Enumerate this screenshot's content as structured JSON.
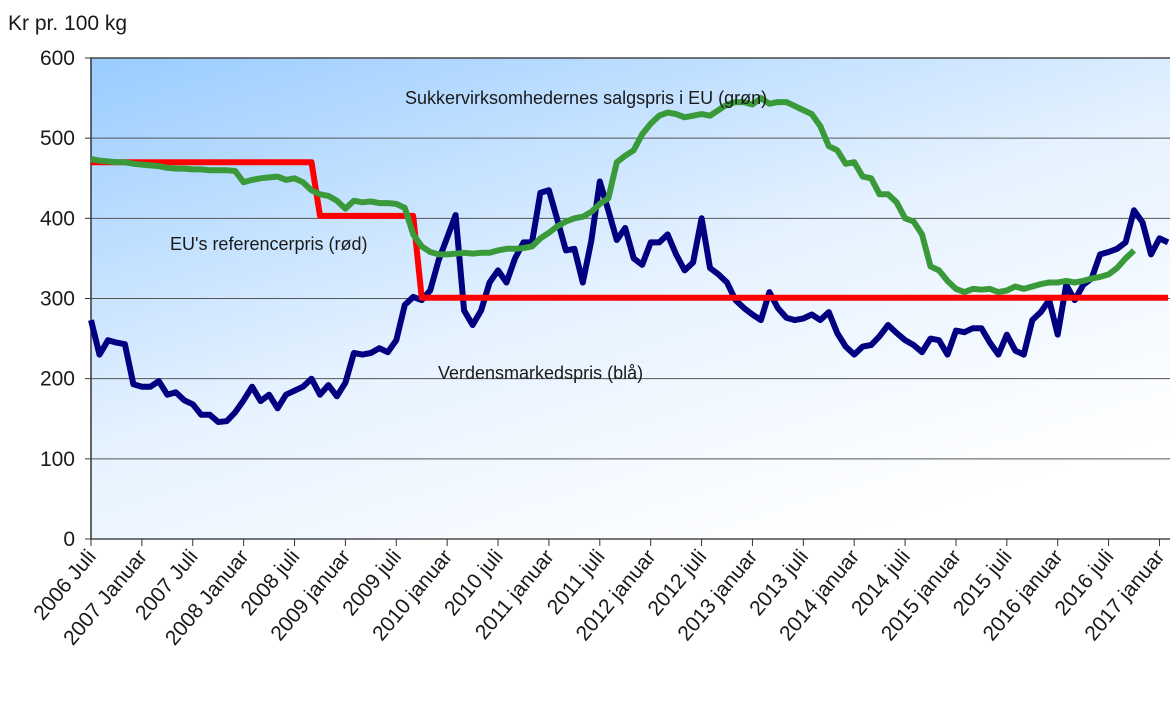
{
  "chart_data": {
    "type": "line",
    "y_label": "Kr pr. 100 kg",
    "annotations": [
      "Sukkervirksomhedernes salgspris i EU (grøn)",
      "EU's referencerpris (rød)",
      "Verdensmarkedspris (blå)"
    ],
    "ylim": [
      0,
      600
    ],
    "yticks": [
      0,
      100,
      200,
      300,
      400,
      500,
      600
    ],
    "grid": true,
    "categories": [
      "2006 Juli",
      null,
      null,
      null,
      null,
      null,
      "2007 Januar",
      null,
      null,
      null,
      null,
      null,
      "2007 Juli",
      null,
      null,
      null,
      null,
      null,
      "2008 Januar",
      null,
      null,
      null,
      null,
      null,
      "2008 juli",
      null,
      null,
      null,
      null,
      null,
      "2009 januar",
      null,
      null,
      null,
      null,
      null,
      "2009 juli",
      null,
      null,
      null,
      null,
      null,
      "2010 januar",
      null,
      null,
      null,
      null,
      null,
      "2010 juli",
      null,
      null,
      null,
      null,
      null,
      "2011 januar",
      null,
      null,
      null,
      null,
      null,
      "2011 juli",
      null,
      null,
      null,
      null,
      null,
      "2012 januar",
      null,
      null,
      null,
      null,
      null,
      "2012 juli",
      null,
      null,
      null,
      null,
      null,
      "2013 januar",
      null,
      null,
      null,
      null,
      null,
      "2013 juli",
      null,
      null,
      null,
      null,
      null,
      "2014 januar",
      null,
      null,
      null,
      null,
      null,
      "2014 juli",
      null,
      null,
      null,
      null,
      null,
      "2015 januar",
      null,
      null,
      null,
      null,
      null,
      "2015 juli",
      null,
      null,
      null,
      null,
      null,
      "2016 januar",
      null,
      null,
      null,
      null,
      null,
      "2016 juli",
      null,
      null,
      null,
      null,
      null,
      "2017 januar",
      null
    ],
    "series": [
      {
        "color": "#000080",
        "values": [
          273,
          230,
          248,
          245,
          243,
          193,
          190,
          190,
          197,
          180,
          183,
          173,
          168,
          155,
          155,
          146,
          147,
          158,
          173,
          190,
          172,
          180,
          163,
          180,
          185,
          190,
          200,
          180,
          192,
          178,
          195,
          232,
          230,
          232,
          238,
          233,
          248,
          292,
          302,
          298,
          310,
          348,
          376,
          404,
          285,
          267,
          285,
          320,
          335,
          320,
          350,
          370,
          370,
          432,
          435,
          398,
          360,
          362,
          320,
          372,
          446,
          410,
          373,
          388,
          350,
          342,
          370,
          370,
          380,
          355,
          335,
          345,
          400,
          338,
          330,
          320,
          298,
          288,
          280,
          273,
          308,
          288,
          276,
          273,
          275,
          280,
          273,
          283,
          257,
          240,
          230,
          240,
          242,
          253,
          267,
          257,
          248,
          242,
          233,
          250,
          248,
          230,
          260,
          258,
          263,
          263,
          245,
          230,
          255,
          235,
          230,
          273,
          283,
          298,
          255,
          317,
          298,
          317,
          325,
          355,
          358,
          362,
          370,
          410,
          395,
          355,
          375,
          370
        ]
      },
      {
        "color": "#ff0000",
        "values": [
          470,
          470,
          470,
          470,
          470,
          470,
          470,
          470,
          470,
          470,
          470,
          470,
          470,
          470,
          470,
          470,
          470,
          470,
          470,
          470,
          470,
          470,
          470,
          470,
          470,
          470,
          470,
          403,
          403,
          403,
          403,
          403,
          403,
          403,
          403,
          403,
          403,
          403,
          403,
          301,
          301,
          301,
          301,
          301,
          301,
          301,
          301,
          301,
          301,
          301,
          301,
          301,
          301,
          301,
          301,
          301,
          301,
          301,
          301,
          301,
          301,
          301,
          301,
          301,
          301,
          301,
          301,
          301,
          301,
          301,
          301,
          301,
          301,
          301,
          301,
          301,
          301,
          301,
          301,
          301,
          301,
          301,
          301,
          301,
          301,
          301,
          301,
          301,
          301,
          301,
          301,
          301,
          301,
          301,
          301,
          301,
          301,
          301,
          301,
          301,
          301,
          301,
          301,
          301,
          301,
          301,
          301,
          301,
          301,
          301,
          301,
          301,
          301,
          301,
          301,
          301,
          301,
          301,
          301,
          301,
          301,
          301,
          301,
          301,
          301,
          301,
          301,
          301
        ]
      },
      {
        "color": "#3a9a3a",
        "values": [
          474,
          472,
          471,
          470,
          470,
          468,
          467,
          466,
          465,
          463,
          462,
          462,
          461,
          461,
          460,
          460,
          460,
          459,
          445,
          448,
          450,
          451,
          452,
          448,
          450,
          445,
          435,
          430,
          428,
          422,
          412,
          422,
          420,
          421,
          419,
          419,
          418,
          413,
          380,
          365,
          358,
          355,
          355,
          356,
          357,
          356,
          357,
          357,
          360,
          362,
          362,
          363,
          365,
          375,
          382,
          390,
          396,
          400,
          402,
          408,
          418,
          425,
          470,
          478,
          485,
          505,
          518,
          528,
          532,
          530,
          526,
          528,
          530,
          528,
          535,
          542,
          545,
          545,
          542,
          550,
          543,
          545,
          545,
          540,
          535,
          530,
          515,
          490,
          485,
          468,
          470,
          452,
          450,
          430,
          430,
          420,
          400,
          396,
          380,
          340,
          335,
          322,
          312,
          308,
          312,
          311,
          312,
          308,
          310,
          315,
          312,
          315,
          318,
          320,
          320,
          322,
          320,
          322,
          325,
          327,
          330,
          338,
          350,
          360,
          null,
          null,
          null,
          null
        ]
      }
    ]
  }
}
